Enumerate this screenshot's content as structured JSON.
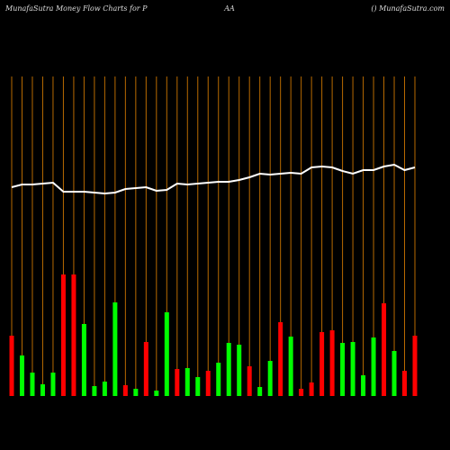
{
  "chart_data": {
    "type": "bar",
    "title_left": "MunafaSutra  Money Flow  Charts for P",
    "title_center": "AA",
    "title_right": "() MunafaSutra.com",
    "ylim": [
      0,
      355
    ],
    "series": [
      {
        "name": "Money Flow",
        "type": "bar",
        "colors": [
          "#ff0000",
          "#00ff00",
          "#00ff00",
          "#00ff00",
          "#00ff00",
          "#ff0000",
          "#ff0000",
          "#00ff00",
          "#00ff00",
          "#00ff00",
          "#00ff00",
          "#ff0000",
          "#00ff00",
          "#ff0000",
          "#00ff00",
          "#00ff00",
          "#ff0000",
          "#00ff00",
          "#00ff00",
          "#ff0000",
          "#00ff00",
          "#00ff00",
          "#00ff00",
          "#ff0000",
          "#00ff00",
          "#00ff00",
          "#ff0000",
          "#00ff00",
          "#ff0000",
          "#ff0000",
          "#ff0000",
          "#ff0000",
          "#00ff00",
          "#00ff00",
          "#00ff00",
          "#00ff00",
          "#ff0000",
          "#00ff00",
          "#ff0000",
          "#ff0000"
        ],
        "values": [
          67,
          45,
          26,
          13,
          26,
          135,
          135,
          80,
          11,
          16,
          104,
          12,
          8,
          60,
          6,
          93,
          30,
          31,
          21,
          28,
          37,
          59,
          57,
          33,
          10,
          39,
          82,
          66,
          8,
          15,
          71,
          73,
          59,
          60,
          23,
          65,
          103,
          50,
          28,
          67
        ]
      },
      {
        "name": "Price",
        "type": "line",
        "color": "#ffffff",
        "values": [
          232,
          235,
          235,
          236,
          237,
          227,
          227,
          227,
          226,
          225,
          226,
          230,
          231,
          232,
          228,
          229,
          236,
          235,
          236,
          237,
          238,
          238,
          240,
          243,
          247,
          246,
          247,
          248,
          247,
          254,
          255,
          254,
          250,
          247,
          251,
          251,
          255,
          257,
          251,
          254
        ]
      }
    ]
  }
}
